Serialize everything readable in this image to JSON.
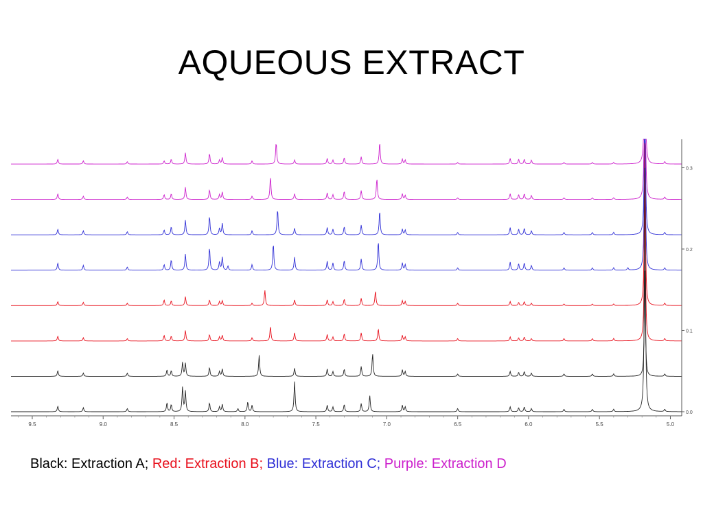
{
  "slide": {
    "title": "AQUEOUS EXTRACT"
  },
  "caption": [
    {
      "text": "Black: Extraction A;",
      "color": "#000000"
    },
    {
      "text": "Red: Extraction B;",
      "color": "#e8101c"
    },
    {
      "text": "Blue: Extraction C;",
      "color": "#2f2fd6"
    },
    {
      "text": "Purple: Extraction D",
      "color": "#cc1fcc"
    }
  ],
  "chart_data": {
    "type": "line",
    "x_axis": {
      "range": [
        9.65,
        4.92
      ],
      "reversed": true,
      "ticks": [
        9.5,
        9.0,
        8.5,
        8.0,
        7.5,
        7.0,
        6.5,
        6.0,
        5.5,
        5.0
      ]
    },
    "y_axis": {
      "range": [
        0,
        0.34
      ],
      "position": "right",
      "ticks": [
        0.0,
        0.1,
        0.2,
        0.3
      ]
    },
    "grid": false,
    "series_offset_step": 0.0435,
    "series": [
      {
        "color": "#222222",
        "label": "Black: Extraction A",
        "offset_index": 0,
        "peaks": [
          [
            9.32,
            0.007
          ],
          [
            9.14,
            0.005
          ],
          [
            8.83,
            0.004
          ],
          [
            8.55,
            0.011
          ],
          [
            8.52,
            0.009
          ],
          [
            8.44,
            0.03
          ],
          [
            8.42,
            0.025
          ],
          [
            8.25,
            0.011
          ],
          [
            8.18,
            0.006
          ],
          [
            8.16,
            0.009
          ],
          [
            8.05,
            0.004
          ],
          [
            7.98,
            0.012
          ],
          [
            7.95,
            0.008
          ],
          [
            7.65,
            0.037
          ],
          [
            7.42,
            0.008
          ],
          [
            7.38,
            0.006
          ],
          [
            7.3,
            0.009
          ],
          [
            7.18,
            0.01
          ],
          [
            7.12,
            0.02
          ],
          [
            6.89,
            0.008
          ],
          [
            6.87,
            0.006
          ],
          [
            6.5,
            0.004
          ],
          [
            6.13,
            0.006
          ],
          [
            6.07,
            0.005
          ],
          [
            6.03,
            0.006
          ],
          [
            5.98,
            0.004
          ],
          [
            5.75,
            0.003
          ],
          [
            5.55,
            0.003
          ],
          [
            5.4,
            0.003
          ],
          [
            5.18,
            0.3
          ],
          [
            5.04,
            0.003
          ]
        ]
      },
      {
        "color": "#222222",
        "label": "Black: Extraction A",
        "offset_index": 1,
        "peaks": [
          [
            9.32,
            0.007
          ],
          [
            9.14,
            0.004
          ],
          [
            8.83,
            0.004
          ],
          [
            8.55,
            0.008
          ],
          [
            8.52,
            0.007
          ],
          [
            8.44,
            0.017
          ],
          [
            8.42,
            0.016
          ],
          [
            8.25,
            0.011
          ],
          [
            8.18,
            0.006
          ],
          [
            8.16,
            0.009
          ],
          [
            7.9,
            0.026
          ],
          [
            7.65,
            0.01
          ],
          [
            7.42,
            0.009
          ],
          [
            7.38,
            0.006
          ],
          [
            7.3,
            0.009
          ],
          [
            7.18,
            0.012
          ],
          [
            7.1,
            0.028
          ],
          [
            6.89,
            0.008
          ],
          [
            6.87,
            0.006
          ],
          [
            6.5,
            0.003
          ],
          [
            6.13,
            0.006
          ],
          [
            6.07,
            0.005
          ],
          [
            6.03,
            0.006
          ],
          [
            5.98,
            0.004
          ],
          [
            5.75,
            0.003
          ],
          [
            5.55,
            0.003
          ],
          [
            5.4,
            0.003
          ],
          [
            5.18,
            0.13
          ],
          [
            5.04,
            0.003
          ]
        ]
      },
      {
        "color": "#e8101c",
        "label": "Red: Extraction B",
        "offset_index": 2,
        "peaks": [
          [
            9.32,
            0.006
          ],
          [
            9.14,
            0.004
          ],
          [
            8.83,
            0.003
          ],
          [
            8.57,
            0.007
          ],
          [
            8.52,
            0.006
          ],
          [
            8.42,
            0.013
          ],
          [
            8.25,
            0.008
          ],
          [
            8.18,
            0.005
          ],
          [
            8.16,
            0.007
          ],
          [
            7.95,
            0.004
          ],
          [
            7.82,
            0.018
          ],
          [
            7.65,
            0.01
          ],
          [
            7.42,
            0.008
          ],
          [
            7.38,
            0.005
          ],
          [
            7.3,
            0.009
          ],
          [
            7.18,
            0.01
          ],
          [
            7.06,
            0.015
          ],
          [
            6.89,
            0.007
          ],
          [
            6.87,
            0.005
          ],
          [
            6.5,
            0.003
          ],
          [
            6.13,
            0.005
          ],
          [
            6.07,
            0.004
          ],
          [
            6.03,
            0.005
          ],
          [
            5.98,
            0.003
          ],
          [
            5.75,
            0.003
          ],
          [
            5.55,
            0.003
          ],
          [
            5.4,
            0.003
          ],
          [
            5.18,
            0.2
          ],
          [
            5.04,
            0.003
          ]
        ]
      },
      {
        "color": "#e8101c",
        "label": "Red: Extraction B",
        "offset_index": 3,
        "peaks": [
          [
            9.32,
            0.005
          ],
          [
            9.14,
            0.004
          ],
          [
            8.83,
            0.003
          ],
          [
            8.57,
            0.007
          ],
          [
            8.52,
            0.006
          ],
          [
            8.42,
            0.011
          ],
          [
            8.25,
            0.007
          ],
          [
            8.18,
            0.005
          ],
          [
            8.16,
            0.006
          ],
          [
            7.95,
            0.003
          ],
          [
            7.86,
            0.019
          ],
          [
            7.65,
            0.007
          ],
          [
            7.42,
            0.007
          ],
          [
            7.38,
            0.005
          ],
          [
            7.3,
            0.008
          ],
          [
            7.18,
            0.009
          ],
          [
            7.08,
            0.018
          ],
          [
            6.89,
            0.006
          ],
          [
            6.87,
            0.005
          ],
          [
            6.5,
            0.003
          ],
          [
            6.13,
            0.005
          ],
          [
            6.07,
            0.004
          ],
          [
            6.03,
            0.005
          ],
          [
            5.98,
            0.003
          ],
          [
            5.75,
            0.002
          ],
          [
            5.55,
            0.002
          ],
          [
            5.4,
            0.002
          ],
          [
            5.18,
            0.2
          ],
          [
            5.04,
            0.003
          ]
        ]
      },
      {
        "color": "#2f2fd6",
        "label": "Blue: Extraction C",
        "offset_index": 4,
        "peaks": [
          [
            9.32,
            0.009
          ],
          [
            9.14,
            0.006
          ],
          [
            8.83,
            0.004
          ],
          [
            8.57,
            0.007
          ],
          [
            8.52,
            0.013
          ],
          [
            8.42,
            0.02
          ],
          [
            8.25,
            0.028
          ],
          [
            8.18,
            0.01
          ],
          [
            8.16,
            0.016
          ],
          [
            8.12,
            0.005
          ],
          [
            7.95,
            0.007
          ],
          [
            7.8,
            0.033
          ],
          [
            7.65,
            0.016
          ],
          [
            7.42,
            0.011
          ],
          [
            7.38,
            0.009
          ],
          [
            7.3,
            0.012
          ],
          [
            7.18,
            0.014
          ],
          [
            7.06,
            0.036
          ],
          [
            6.89,
            0.009
          ],
          [
            6.87,
            0.007
          ],
          [
            6.5,
            0.003
          ],
          [
            6.13,
            0.01
          ],
          [
            6.07,
            0.008
          ],
          [
            6.03,
            0.009
          ],
          [
            5.98,
            0.006
          ],
          [
            5.75,
            0.003
          ],
          [
            5.55,
            0.003
          ],
          [
            5.4,
            0.003
          ],
          [
            5.3,
            0.003
          ],
          [
            5.18,
            0.2
          ],
          [
            5.04,
            0.003
          ]
        ]
      },
      {
        "color": "#2f2fd6",
        "label": "Blue: Extraction C",
        "offset_index": 5,
        "peaks": [
          [
            9.32,
            0.007
          ],
          [
            9.14,
            0.005
          ],
          [
            8.83,
            0.004
          ],
          [
            8.57,
            0.006
          ],
          [
            8.52,
            0.01
          ],
          [
            8.42,
            0.018
          ],
          [
            8.25,
            0.023
          ],
          [
            8.18,
            0.008
          ],
          [
            8.16,
            0.014
          ],
          [
            7.95,
            0.005
          ],
          [
            7.77,
            0.032
          ],
          [
            7.65,
            0.008
          ],
          [
            7.42,
            0.009
          ],
          [
            7.38,
            0.007
          ],
          [
            7.3,
            0.01
          ],
          [
            7.18,
            0.012
          ],
          [
            7.05,
            0.03
          ],
          [
            6.89,
            0.007
          ],
          [
            6.87,
            0.006
          ],
          [
            6.5,
            0.003
          ],
          [
            6.13,
            0.009
          ],
          [
            6.07,
            0.007
          ],
          [
            6.03,
            0.008
          ],
          [
            5.98,
            0.005
          ],
          [
            5.75,
            0.003
          ],
          [
            5.55,
            0.003
          ],
          [
            5.4,
            0.003
          ],
          [
            5.18,
            0.2
          ],
          [
            5.04,
            0.003
          ]
        ]
      },
      {
        "color": "#cc1fcc",
        "label": "Purple: Extraction D",
        "offset_index": 6,
        "peaks": [
          [
            9.32,
            0.007
          ],
          [
            9.14,
            0.004
          ],
          [
            8.83,
            0.003
          ],
          [
            8.57,
            0.006
          ],
          [
            8.52,
            0.007
          ],
          [
            8.42,
            0.015
          ],
          [
            8.25,
            0.012
          ],
          [
            8.18,
            0.006
          ],
          [
            8.16,
            0.009
          ],
          [
            7.95,
            0.004
          ],
          [
            7.82,
            0.028
          ],
          [
            7.65,
            0.007
          ],
          [
            7.42,
            0.008
          ],
          [
            7.38,
            0.006
          ],
          [
            7.3,
            0.01
          ],
          [
            7.18,
            0.011
          ],
          [
            7.07,
            0.026
          ],
          [
            6.89,
            0.007
          ],
          [
            6.87,
            0.005
          ],
          [
            6.5,
            0.002
          ],
          [
            6.13,
            0.007
          ],
          [
            6.07,
            0.006
          ],
          [
            6.03,
            0.007
          ],
          [
            5.98,
            0.005
          ],
          [
            5.75,
            0.002
          ],
          [
            5.55,
            0.002
          ],
          [
            5.4,
            0.002
          ],
          [
            5.18,
            0.2
          ],
          [
            5.04,
            0.003
          ]
        ]
      },
      {
        "color": "#cc1fcc",
        "label": "Purple: Extraction D",
        "offset_index": 7,
        "peaks": [
          [
            9.32,
            0.006
          ],
          [
            9.14,
            0.004
          ],
          [
            8.83,
            0.003
          ],
          [
            8.57,
            0.004
          ],
          [
            8.52,
            0.006
          ],
          [
            8.42,
            0.014
          ],
          [
            8.25,
            0.013
          ],
          [
            8.18,
            0.005
          ],
          [
            8.16,
            0.008
          ],
          [
            7.95,
            0.004
          ],
          [
            7.78,
            0.027
          ],
          [
            7.65,
            0.005
          ],
          [
            7.42,
            0.007
          ],
          [
            7.38,
            0.005
          ],
          [
            7.3,
            0.008
          ],
          [
            7.18,
            0.009
          ],
          [
            7.05,
            0.027
          ],
          [
            6.89,
            0.006
          ],
          [
            6.87,
            0.005
          ],
          [
            6.5,
            0.002
          ],
          [
            6.13,
            0.007
          ],
          [
            6.07,
            0.006
          ],
          [
            6.03,
            0.006
          ],
          [
            5.98,
            0.005
          ],
          [
            5.75,
            0.002
          ],
          [
            5.55,
            0.002
          ],
          [
            5.4,
            0.002
          ],
          [
            5.18,
            0.2
          ],
          [
            5.04,
            0.003
          ]
        ]
      }
    ]
  }
}
